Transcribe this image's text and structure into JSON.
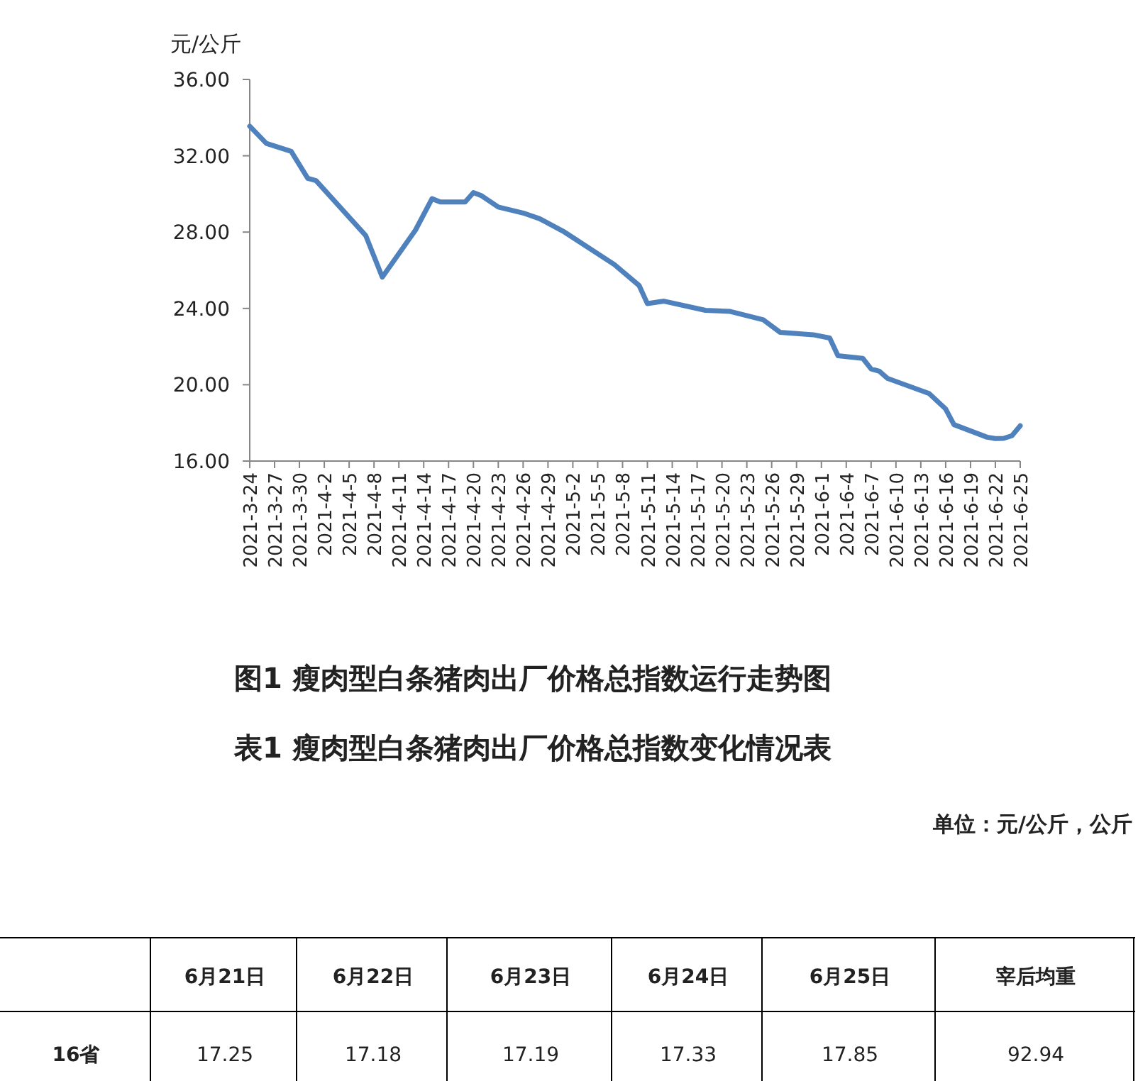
{
  "chart_data": {
    "type": "line",
    "title": "图1 瘦肉型白条猪肉出厂价格总指数运行走势图",
    "ylabel": "元/公斤",
    "color": "#4f81bd",
    "x": [
      "2021-03-24",
      "2021-03-26",
      "2021-03-29",
      "2021-03-31",
      "2021-04-01",
      "2021-04-07",
      "2021-04-09",
      "2021-04-13",
      "2021-04-15",
      "2021-04-16",
      "2021-04-19",
      "2021-04-20",
      "2021-04-21",
      "2021-04-23",
      "2021-04-26",
      "2021-04-28",
      "2021-05-01",
      "2021-05-07",
      "2021-05-10",
      "2021-05-11",
      "2021-05-13",
      "2021-05-18",
      "2021-05-21",
      "2021-05-25",
      "2021-05-27",
      "2021-05-31",
      "2021-06-02",
      "2021-06-03",
      "2021-06-06",
      "2021-06-07",
      "2021-06-08",
      "2021-06-09",
      "2021-06-14",
      "2021-06-16",
      "2021-06-17",
      "2021-06-21",
      "2021-06-22",
      "2021-06-23",
      "2021-06-24",
      "2021-06-25"
    ],
    "values": [
      33.55,
      32.65,
      32.23,
      30.82,
      30.7,
      27.82,
      25.64,
      28.1,
      29.75,
      29.58,
      29.58,
      30.07,
      29.9,
      29.31,
      29.0,
      28.7,
      28.0,
      26.3,
      25.2,
      24.25,
      24.38,
      23.9,
      23.84,
      23.4,
      22.75,
      22.62,
      22.45,
      21.52,
      21.38,
      20.83,
      20.71,
      20.33,
      19.54,
      18.73,
      17.91,
      17.25,
      17.18,
      17.19,
      17.33,
      17.85
    ],
    "xlim": [
      "2021-03-24",
      "2021-06-25"
    ],
    "xticks": [
      {
        "value": "2021-03-24",
        "label": "2021-3-24"
      },
      {
        "value": "2021-03-27",
        "label": "2021-3-27"
      },
      {
        "value": "2021-03-30",
        "label": "2021-3-30"
      },
      {
        "value": "2021-04-02",
        "label": "2021-4-2"
      },
      {
        "value": "2021-04-05",
        "label": "2021-4-5"
      },
      {
        "value": "2021-04-08",
        "label": "2021-4-8"
      },
      {
        "value": "2021-04-11",
        "label": "2021-4-11"
      },
      {
        "value": "2021-04-14",
        "label": "2021-4-14"
      },
      {
        "value": "2021-04-17",
        "label": "2021-4-17"
      },
      {
        "value": "2021-04-20",
        "label": "2021-4-20"
      },
      {
        "value": "2021-04-23",
        "label": "2021-4-23"
      },
      {
        "value": "2021-04-26",
        "label": "2021-4-26"
      },
      {
        "value": "2021-04-29",
        "label": "2021-4-29"
      },
      {
        "value": "2021-05-02",
        "label": "2021-5-2"
      },
      {
        "value": "2021-05-05",
        "label": "2021-5-5"
      },
      {
        "value": "2021-05-08",
        "label": "2021-5-8"
      },
      {
        "value": "2021-05-11",
        "label": "2021-5-11"
      },
      {
        "value": "2021-05-14",
        "label": "2021-5-14"
      },
      {
        "value": "2021-05-17",
        "label": "2021-5-17"
      },
      {
        "value": "2021-05-20",
        "label": "2021-5-20"
      },
      {
        "value": "2021-05-23",
        "label": "2021-5-23"
      },
      {
        "value": "2021-05-26",
        "label": "2021-5-26"
      },
      {
        "value": "2021-05-29",
        "label": "2021-5-29"
      },
      {
        "value": "2021-06-01",
        "label": "2021-6-1"
      },
      {
        "value": "2021-06-04",
        "label": "2021-6-4"
      },
      {
        "value": "2021-06-07",
        "label": "2021-6-7"
      },
      {
        "value": "2021-06-10",
        "label": "2021-6-10"
      },
      {
        "value": "2021-06-13",
        "label": "2021-6-13"
      },
      {
        "value": "2021-06-16",
        "label": "2021-6-16"
      },
      {
        "value": "2021-06-19",
        "label": "2021-6-19"
      },
      {
        "value": "2021-06-22",
        "label": "2021-6-22"
      },
      {
        "value": "2021-06-25",
        "label": "2021-6-25"
      }
    ],
    "ylim": [
      16,
      36
    ],
    "yticks": [
      {
        "value": 16,
        "label": "16.00"
      },
      {
        "value": 20,
        "label": "20.00"
      },
      {
        "value": 24,
        "label": "24.00"
      },
      {
        "value": 28,
        "label": "28.00"
      },
      {
        "value": 32,
        "label": "32.00"
      },
      {
        "value": 36,
        "label": "36.00"
      }
    ],
    "annotations": [
      "表1 瘦肉型白条猪肉出厂价格总指数变化情况表",
      "单位：元/公斤，公斤",
      "6月21日",
      "6月22日",
      "6月23日",
      "6月24日",
      "6月25日",
      "宰后均重",
      "16省",
      "17.25",
      "17.18",
      "17.19",
      "17.33",
      "17.85",
      "92.94"
    ]
  }
}
